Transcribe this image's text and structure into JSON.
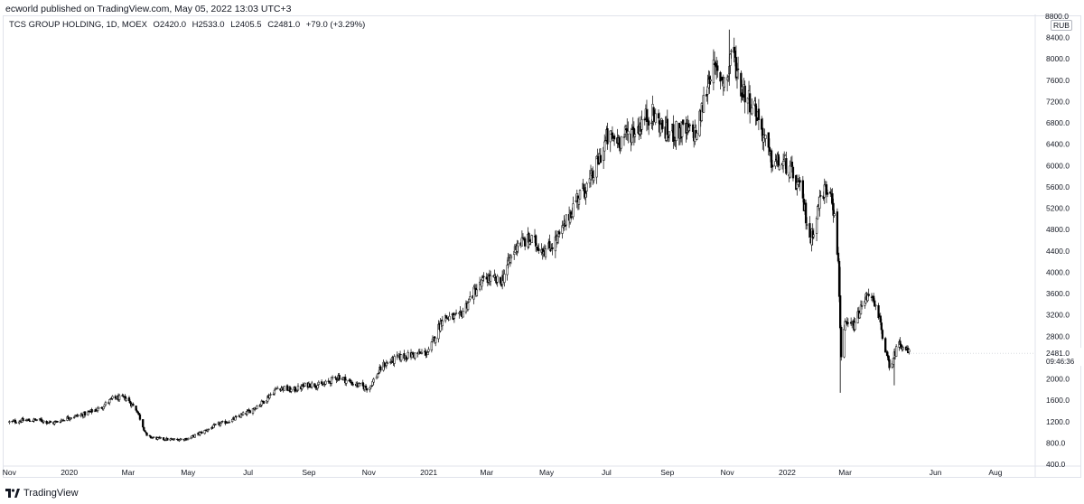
{
  "header": {
    "published": "ecworld published on TradingView.com, May 05, 2022 13:03 UTC+3"
  },
  "symbol": {
    "name": "TCS GROUP HOLDING, 1D, MOEX",
    "open": "O2420.0",
    "high": "H2533.0",
    "low": "L2405.5",
    "close": "C2481.0",
    "change": "+79.0 (+3.29%)"
  },
  "currency": "RUB",
  "price_label": {
    "value": "2481.0",
    "countdown": "09:46:36"
  },
  "footer": {
    "brand": "TradingView"
  },
  "colors": {
    "candle": "#000000",
    "grid": "#f0f3fa",
    "axis_text": "#131722"
  },
  "chart_data": {
    "type": "candlestick",
    "title": "TCS GROUP HOLDING, 1D, MOEX",
    "ylabel": "",
    "xlabel": "",
    "ylim": [
      400,
      8800
    ],
    "y_ticks": [
      "400.0",
      "800.0",
      "1200.0",
      "1600.0",
      "2000.0",
      "2400.0",
      "2800.0",
      "3200.0",
      "3600.0",
      "4000.0",
      "4400.0",
      "4800.0",
      "5200.0",
      "5600.0",
      "6000.0",
      "6400.0",
      "6800.0",
      "7200.0",
      "7600.0",
      "8000.0",
      "8400.0",
      "8800.0"
    ],
    "x_ticks": [
      "Nov",
      "2020",
      "Mar",
      "May",
      "Jul",
      "Sep",
      "Nov",
      "2021",
      "Mar",
      "May",
      "Jul",
      "Sep",
      "Nov",
      "2022",
      "Mar",
      "Jun",
      "Aug"
    ],
    "x_tick_dates": [
      "2019-11-01",
      "2020-01-01",
      "2020-03-01",
      "2020-05-01",
      "2020-07-01",
      "2020-09-01",
      "2020-11-01",
      "2021-01-01",
      "2021-03-01",
      "2021-05-01",
      "2021-07-01",
      "2021-09-01",
      "2021-11-01",
      "2022-01-01",
      "2022-03-01",
      "2022-06-01",
      "2022-08-01"
    ],
    "grid": false,
    "legend": "none",
    "series": [
      {
        "values": [
          [
            "2019-11-01",
            1190
          ],
          [
            "2019-11-15",
            1220
          ],
          [
            "2019-12-01",
            1230
          ],
          [
            "2019-12-15",
            1170
          ],
          [
            "2020-01-01",
            1280
          ],
          [
            "2020-01-15",
            1330
          ],
          [
            "2020-02-01",
            1450
          ],
          [
            "2020-02-15",
            1640
          ],
          [
            "2020-02-28",
            1640
          ],
          [
            "2020-03-10",
            1410
          ],
          [
            "2020-03-20",
            920
          ],
          [
            "2020-04-01",
            880
          ],
          [
            "2020-04-15",
            860
          ],
          [
            "2020-05-01",
            880
          ],
          [
            "2020-05-15",
            1000
          ],
          [
            "2020-06-01",
            1150
          ],
          [
            "2020-06-15",
            1230
          ],
          [
            "2020-07-01",
            1380
          ],
          [
            "2020-07-15",
            1550
          ],
          [
            "2020-08-01",
            1850
          ],
          [
            "2020-08-15",
            1780
          ],
          [
            "2020-09-01",
            1900
          ],
          [
            "2020-09-15",
            1880
          ],
          [
            "2020-10-01",
            2050
          ],
          [
            "2020-10-15",
            1920
          ],
          [
            "2020-11-01",
            1820
          ],
          [
            "2020-11-15",
            2250
          ],
          [
            "2020-12-01",
            2400
          ],
          [
            "2020-12-15",
            2450
          ],
          [
            "2021-01-01",
            2500
          ],
          [
            "2021-01-15",
            3150
          ],
          [
            "2021-02-01",
            3150
          ],
          [
            "2021-02-15",
            3600
          ],
          [
            "2021-03-01",
            3900
          ],
          [
            "2021-03-15",
            3800
          ],
          [
            "2021-04-01",
            4550
          ],
          [
            "2021-04-15",
            4600
          ],
          [
            "2021-05-01",
            4400
          ],
          [
            "2021-05-15",
            4700
          ],
          [
            "2021-06-01",
            5400
          ],
          [
            "2021-06-15",
            5700
          ],
          [
            "2021-07-01",
            6500
          ],
          [
            "2021-07-15",
            6500
          ],
          [
            "2021-08-01",
            6700
          ],
          [
            "2021-08-15",
            7000
          ],
          [
            "2021-09-01",
            6600
          ],
          [
            "2021-09-15",
            6650
          ],
          [
            "2021-10-01",
            6600
          ],
          [
            "2021-10-15",
            7800
          ],
          [
            "2021-11-01",
            7600
          ],
          [
            "2021-11-05",
            8200
          ],
          [
            "2021-11-15",
            7500
          ],
          [
            "2021-12-01",
            7000
          ],
          [
            "2021-12-15",
            6100
          ],
          [
            "2022-01-01",
            6000
          ],
          [
            "2022-01-15",
            5500
          ],
          [
            "2022-01-25",
            4600
          ],
          [
            "2022-02-05",
            5500
          ],
          [
            "2022-02-15",
            5600
          ],
          [
            "2022-02-22",
            4200
          ],
          [
            "2022-02-25",
            2400
          ],
          [
            "2022-03-01",
            3000
          ],
          [
            "2022-03-10",
            3000
          ],
          [
            "2022-03-25",
            3650
          ],
          [
            "2022-04-05",
            3100
          ],
          [
            "2022-04-15",
            2200
          ],
          [
            "2022-04-25",
            2700
          ],
          [
            "2022-05-05",
            2481
          ]
        ]
      }
    ]
  }
}
